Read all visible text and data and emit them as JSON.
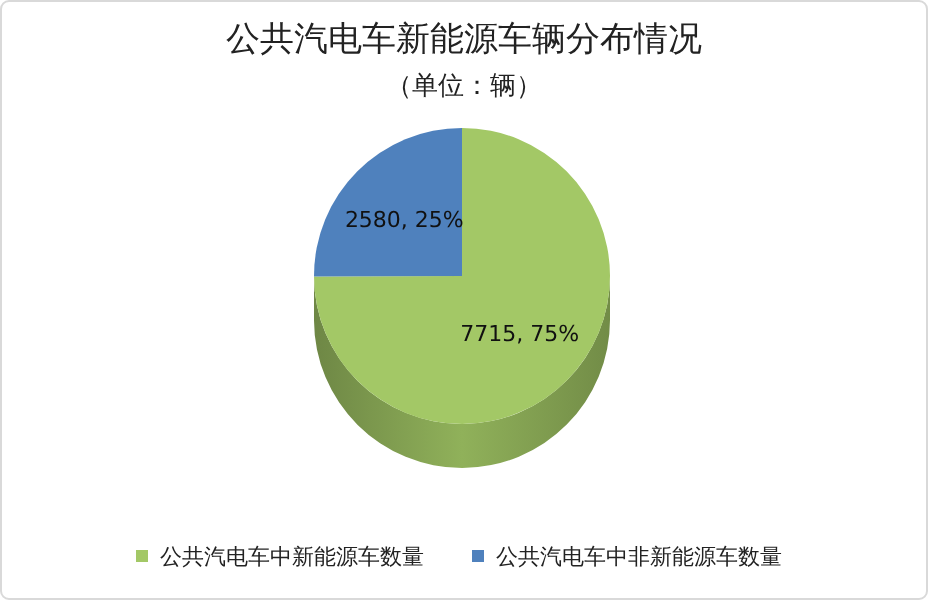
{
  "chart_data": {
    "type": "pie",
    "title": "公共汽电车新能源车辆分布情况",
    "subtitle": "（单位：辆）",
    "categories": [
      "公共汽电车中新能源车数量",
      "公共汽电车中非新能源车数量"
    ],
    "values": [
      7715,
      2580
    ],
    "colors": [
      "#a3c866",
      "#4f81bd"
    ],
    "value_labels": [
      "7715, 75%",
      "2580, 25%"
    ],
    "legend": "bottom"
  }
}
